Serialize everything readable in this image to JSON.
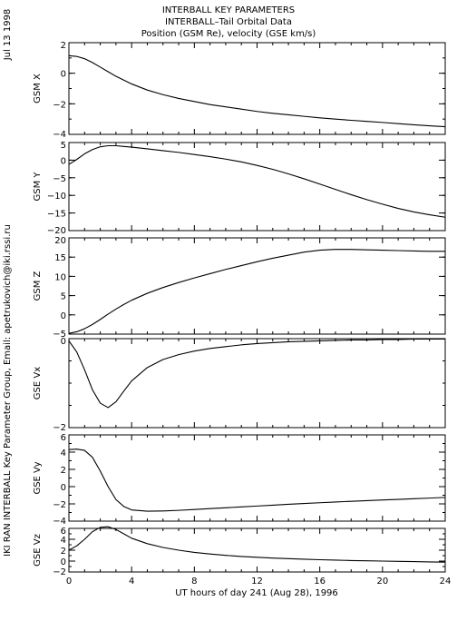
{
  "date_label": "Jul 13 1998",
  "side_credit": "IKI RAN INTERBALL Key Parameter Group, Email: apetrukovich@iki.rssi.ru",
  "title_lines": [
    "INTERBALL KEY PARAMETERS",
    "INTERBALL–Tail Orbital Data",
    "Position (GSM Re), velocity (GSE km/s)"
  ],
  "xaxis": {
    "label": "UT hours of day 241 (Aug 28), 1996",
    "range": [
      0,
      24
    ],
    "ticks": [
      0,
      4,
      8,
      12,
      16,
      20,
      24
    ],
    "tick_labels": [
      "0",
      "4",
      "8",
      "12",
      "16",
      "20",
      "24"
    ]
  },
  "chart_data": [
    {
      "type": "line",
      "ylabel": "GSM X",
      "ylim": [
        -4,
        2
      ],
      "yticks": [
        2,
        0,
        -2,
        -4
      ],
      "ytick_labels": [
        "2",
        "0",
        "−2",
        "−4"
      ],
      "x": [
        0,
        0.5,
        1,
        1.5,
        2,
        2.5,
        3,
        3.5,
        4,
        5,
        6,
        7,
        8,
        9,
        10,
        11,
        12,
        13,
        14,
        15,
        16,
        17,
        18,
        19,
        20,
        21,
        22,
        23,
        24
      ],
      "y": [
        1.15,
        1.1,
        0.95,
        0.7,
        0.4,
        0.1,
        -0.2,
        -0.45,
        -0.7,
        -1.1,
        -1.4,
        -1.65,
        -1.85,
        -2.05,
        -2.2,
        -2.35,
        -2.5,
        -2.62,
        -2.72,
        -2.82,
        -2.92,
        -3.0,
        -3.08,
        -3.15,
        -3.22,
        -3.3,
        -3.37,
        -3.44,
        -3.5
      ]
    },
    {
      "type": "line",
      "ylabel": "GSM Y",
      "ylim": [
        -20,
        5
      ],
      "yticks": [
        5,
        0,
        -5,
        -10,
        -15,
        -20
      ],
      "ytick_labels": [
        "5",
        "0",
        "−5",
        "−10",
        "−15",
        "−20"
      ],
      "x": [
        0,
        0.5,
        1,
        1.5,
        2,
        2.5,
        3,
        3.5,
        4,
        5,
        6,
        7,
        8,
        9,
        10,
        11,
        12,
        13,
        14,
        15,
        16,
        17,
        18,
        19,
        20,
        21,
        22,
        23,
        24
      ],
      "y": [
        -1.2,
        0.2,
        1.8,
        3.0,
        3.8,
        4.1,
        4.1,
        3.9,
        3.7,
        3.2,
        2.7,
        2.2,
        1.6,
        1.0,
        0.3,
        -0.5,
        -1.5,
        -2.6,
        -3.9,
        -5.3,
        -6.8,
        -8.3,
        -9.8,
        -11.2,
        -12.5,
        -13.7,
        -14.7,
        -15.5,
        -16.2
      ]
    },
    {
      "type": "line",
      "ylabel": "GSM Z",
      "ylim": [
        -5,
        20
      ],
      "yticks": [
        20,
        15,
        10,
        5,
        0,
        -5
      ],
      "ytick_labels": [
        "20",
        "15",
        "10",
        "5",
        "0",
        "−5"
      ],
      "x": [
        0,
        0.5,
        1,
        1.5,
        2,
        2.5,
        3,
        3.5,
        4,
        5,
        6,
        7,
        8,
        9,
        10,
        11,
        12,
        13,
        14,
        15,
        16,
        17,
        18,
        19,
        20,
        21,
        22,
        23,
        24
      ],
      "y": [
        -4.8,
        -4.4,
        -3.6,
        -2.5,
        -1.2,
        0.2,
        1.5,
        2.7,
        3.8,
        5.6,
        7.1,
        8.4,
        9.6,
        10.7,
        11.8,
        12.8,
        13.8,
        14.7,
        15.5,
        16.3,
        16.8,
        17.0,
        17.0,
        16.9,
        16.8,
        16.7,
        16.6,
        16.5,
        16.5
      ]
    },
    {
      "type": "line",
      "ylabel": "GSE Vx",
      "ylim": [
        -2,
        0
      ],
      "yticks": [
        0,
        -2
      ],
      "ytick_labels": [
        "0",
        "−2"
      ],
      "x": [
        0,
        0.5,
        1,
        1.5,
        2,
        2.5,
        3,
        3.5,
        4,
        5,
        6,
        7,
        8,
        9,
        10,
        11,
        12,
        13,
        14,
        15,
        16,
        17,
        18,
        19,
        20,
        21,
        22,
        23,
        24
      ],
      "y": [
        -0.05,
        -0.3,
        -0.7,
        -1.15,
        -1.45,
        -1.55,
        -1.42,
        -1.18,
        -0.95,
        -0.65,
        -0.47,
        -0.36,
        -0.28,
        -0.22,
        -0.18,
        -0.14,
        -0.11,
        -0.09,
        -0.07,
        -0.06,
        -0.05,
        -0.04,
        -0.03,
        -0.03,
        -0.02,
        -0.02,
        -0.01,
        -0.01,
        -0.01
      ]
    },
    {
      "type": "line",
      "ylabel": "GSE Vy",
      "ylim": [
        -4,
        6
      ],
      "yticks": [
        6,
        4,
        2,
        0,
        -2,
        -4
      ],
      "ytick_labels": [
        "6",
        "4",
        "2",
        "0",
        "−2",
        "−4"
      ],
      "x": [
        0,
        0.5,
        1,
        1.5,
        2,
        2.5,
        3,
        3.5,
        4,
        5,
        6,
        7,
        8,
        9,
        10,
        11,
        12,
        13,
        14,
        15,
        16,
        17,
        18,
        19,
        20,
        21,
        22,
        23,
        24
      ],
      "y": [
        4.3,
        4.35,
        4.2,
        3.4,
        1.8,
        0.0,
        -1.5,
        -2.3,
        -2.7,
        -2.85,
        -2.82,
        -2.75,
        -2.65,
        -2.55,
        -2.45,
        -2.35,
        -2.25,
        -2.15,
        -2.05,
        -1.95,
        -1.87,
        -1.78,
        -1.7,
        -1.62,
        -1.55,
        -1.48,
        -1.4,
        -1.33,
        -1.25
      ]
    },
    {
      "type": "line",
      "ylabel": "GSE Vz",
      "ylim": [
        -2,
        6
      ],
      "yticks": [
        6,
        4,
        2,
        0,
        -2
      ],
      "ytick_labels": [
        "6",
        "4",
        "2",
        "0",
        "−2"
      ],
      "x": [
        0,
        0.5,
        1,
        1.5,
        2,
        2.5,
        3,
        3.5,
        4,
        5,
        6,
        7,
        8,
        9,
        10,
        11,
        12,
        13,
        14,
        15,
        16,
        17,
        18,
        19,
        20,
        21,
        22,
        23,
        24
      ],
      "y": [
        2.0,
        2.8,
        4.0,
        5.4,
        6.2,
        6.3,
        5.8,
        5.0,
        4.2,
        3.2,
        2.5,
        2.0,
        1.6,
        1.3,
        1.05,
        0.85,
        0.7,
        0.55,
        0.45,
        0.35,
        0.25,
        0.18,
        0.1,
        0.05,
        0.0,
        -0.05,
        -0.1,
        -0.15,
        -0.2
      ]
    }
  ]
}
